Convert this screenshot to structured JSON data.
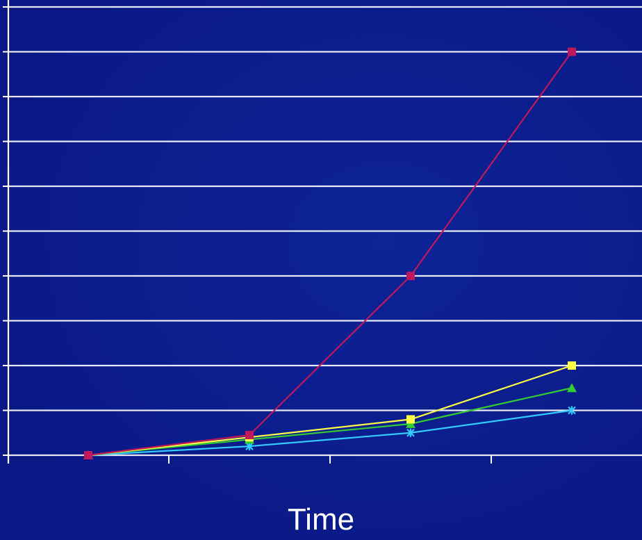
{
  "chart_data": {
    "type": "line",
    "title": "",
    "xlabel": "Time",
    "ylabel": "",
    "categories": [
      "",
      "",
      "",
      ""
    ],
    "ylim": [
      0,
      10
    ],
    "grid": true,
    "series": [
      {
        "color": "#c0185a",
        "marker": "square",
        "values": [
          0,
          0.45,
          4.0,
          9.0
        ]
      },
      {
        "color": "#ffff44",
        "marker": "square",
        "values": [
          0,
          0.4,
          0.8,
          2.0
        ]
      },
      {
        "color": "#33cc33",
        "marker": "triangle",
        "values": [
          0,
          0.35,
          0.7,
          1.5
        ]
      },
      {
        "color": "#33ccff",
        "marker": "star",
        "values": [
          0,
          0.2,
          0.5,
          1.0
        ]
      }
    ]
  },
  "colors": {
    "background": "#0a1a8c",
    "grid": "#ffffff",
    "axis": "#ffffff"
  }
}
